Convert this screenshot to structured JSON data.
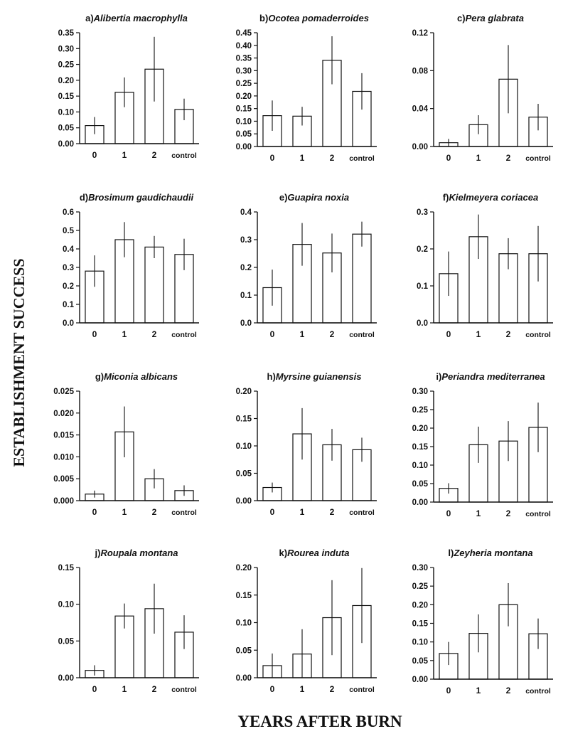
{
  "figure": {
    "ylabel": "ESTABLISHMENT SUCCESS",
    "xlabel": "YEARS AFTER BURN"
  },
  "chart_data": [
    {
      "type": "bar",
      "title_prefix": "a)",
      "title": "Alibertia macrophylla",
      "categories": [
        "0",
        "1",
        "2",
        "control"
      ],
      "values": [
        0.057,
        0.162,
        0.235,
        0.108
      ],
      "errors": [
        0.027,
        0.047,
        0.102,
        0.034
      ],
      "ylim": [
        0,
        0.35
      ],
      "yticks": [
        "0.00",
        "0.05",
        "0.10",
        "0.15",
        "0.20",
        "0.25",
        "0.30",
        "0.35"
      ]
    },
    {
      "type": "bar",
      "title_prefix": "b)",
      "title": "Ocotea pomaderroides",
      "categories": [
        "0",
        "1",
        "2",
        "control"
      ],
      "values": [
        0.122,
        0.12,
        0.341,
        0.218
      ],
      "errors": [
        0.06,
        0.037,
        0.095,
        0.072
      ],
      "ylim": [
        0,
        0.45
      ],
      "yticks": [
        "0.00",
        "0.05",
        "0.10",
        "0.15",
        "0.20",
        "0.25",
        "0.30",
        "0.35",
        "0.40",
        "0.45"
      ]
    },
    {
      "type": "bar",
      "title_prefix": "c)",
      "title": "Pera glabrata",
      "categories": [
        "0",
        "1",
        "2",
        "control"
      ],
      "values": [
        0.004,
        0.023,
        0.071,
        0.031
      ],
      "errors": [
        0.004,
        0.01,
        0.036,
        0.014
      ],
      "ylim": [
        0,
        0.12
      ],
      "yticks": [
        "0.00",
        "0.04",
        "0.08",
        "0.12"
      ]
    },
    {
      "type": "bar",
      "title_prefix": "d)",
      "title": "Brosimum gaudichaudii",
      "categories": [
        "0",
        "1",
        "2",
        "control"
      ],
      "values": [
        0.28,
        0.45,
        0.41,
        0.37
      ],
      "errors": [
        0.085,
        0.095,
        0.06,
        0.085
      ],
      "ylim": [
        0,
        0.6
      ],
      "yticks": [
        "0.0",
        "0.1",
        "0.2",
        "0.3",
        "0.4",
        "0.5",
        "0.6"
      ]
    },
    {
      "type": "bar",
      "title_prefix": "e)",
      "title": "Guapira noxia",
      "categories": [
        "0",
        "1",
        "2",
        "control"
      ],
      "values": [
        0.127,
        0.283,
        0.252,
        0.32
      ],
      "errors": [
        0.065,
        0.077,
        0.07,
        0.045
      ],
      "ylim": [
        0,
        0.4
      ],
      "yticks": [
        "0.0",
        "0.1",
        "0.2",
        "0.3",
        "0.4"
      ]
    },
    {
      "type": "bar",
      "title_prefix": "f)",
      "title": "Kielmeyera coriacea",
      "categories": [
        "0",
        "1",
        "2",
        "control"
      ],
      "values": [
        0.133,
        0.233,
        0.187,
        0.187
      ],
      "errors": [
        0.06,
        0.06,
        0.042,
        0.075
      ],
      "ylim": [
        0,
        0.3
      ],
      "yticks": [
        "0.0",
        "0.1",
        "0.2",
        "0.3"
      ]
    },
    {
      "type": "bar",
      "title_prefix": "g)",
      "title": "Miconia albicans",
      "categories": [
        "0",
        "1",
        "2",
        "control"
      ],
      "values": [
        0.0015,
        0.0157,
        0.005,
        0.0023
      ],
      "errors": [
        0.0008,
        0.0058,
        0.0022,
        0.0012
      ],
      "ylim": [
        0,
        0.025
      ],
      "yticks": [
        "0.000",
        "0.005",
        "0.010",
        "0.015",
        "0.020",
        "0.025"
      ]
    },
    {
      "type": "bar",
      "title_prefix": "h)",
      "title": "Myrsine guianensis",
      "categories": [
        "0",
        "1",
        "2",
        "control"
      ],
      "values": [
        0.024,
        0.122,
        0.102,
        0.093
      ],
      "errors": [
        0.009,
        0.047,
        0.029,
        0.022
      ],
      "ylim": [
        0,
        0.2
      ],
      "yticks": [
        "0.00",
        "0.05",
        "0.10",
        "0.15",
        "0.20"
      ]
    },
    {
      "type": "bar",
      "title_prefix": "i)",
      "title": "Periandra mediterranea",
      "categories": [
        "0",
        "1",
        "2",
        "control"
      ],
      "values": [
        0.037,
        0.155,
        0.165,
        0.202
      ],
      "errors": [
        0.014,
        0.049,
        0.054,
        0.067
      ],
      "ylim": [
        0,
        0.3
      ],
      "yticks": [
        "0.00",
        "0.05",
        "0.10",
        "0.15",
        "0.20",
        "0.25",
        "0.30"
      ]
    },
    {
      "type": "bar",
      "title_prefix": "j)",
      "title": "Roupala montana",
      "categories": [
        "0",
        "1",
        "2",
        "control"
      ],
      "values": [
        0.01,
        0.084,
        0.094,
        0.062
      ],
      "errors": [
        0.007,
        0.017,
        0.034,
        0.023
      ],
      "ylim": [
        0,
        0.15
      ],
      "yticks": [
        "0.00",
        "0.05",
        "0.10",
        "0.15"
      ]
    },
    {
      "type": "bar",
      "title_prefix": "k)",
      "title": "Rourea induta",
      "categories": [
        "0",
        "1",
        "2",
        "control"
      ],
      "values": [
        0.022,
        0.043,
        0.109,
        0.131
      ],
      "errors": [
        0.022,
        0.045,
        0.068,
        0.068
      ],
      "ylim": [
        0,
        0.2
      ],
      "yticks": [
        "0.00",
        "0.05",
        "0.10",
        "0.15",
        "0.20"
      ]
    },
    {
      "type": "bar",
      "title_prefix": "l)",
      "title": "Zeyheria montana",
      "categories": [
        "0",
        "1",
        "2",
        "control"
      ],
      "values": [
        0.069,
        0.123,
        0.2,
        0.122
      ],
      "errors": [
        0.031,
        0.051,
        0.058,
        0.041
      ],
      "ylim": [
        0,
        0.3
      ],
      "yticks": [
        "0.00",
        "0.05",
        "0.10",
        "0.15",
        "0.20",
        "0.25",
        "0.30"
      ]
    }
  ]
}
